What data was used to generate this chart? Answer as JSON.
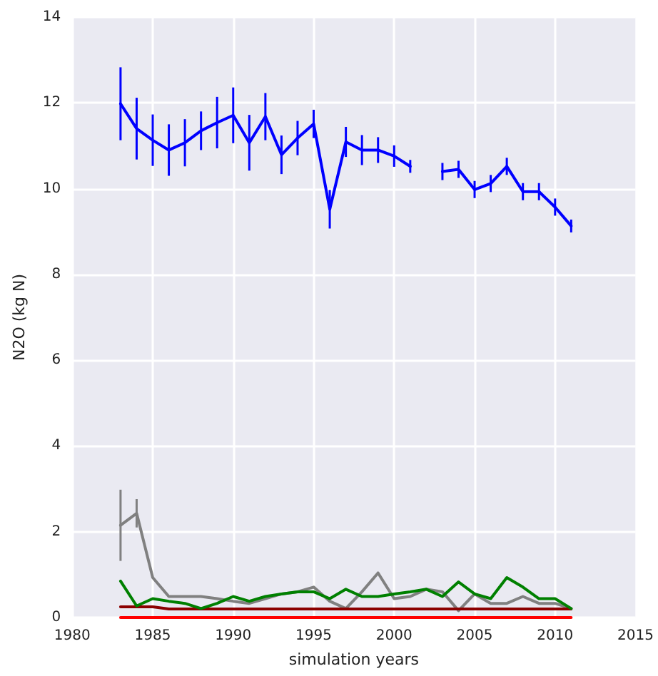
{
  "chart_data": {
    "type": "line",
    "xlabel": "simulation years",
    "ylabel": "N2O (kg N)",
    "x": [
      1983,
      1984,
      1985,
      1986,
      1987,
      1988,
      1989,
      1990,
      1991,
      1992,
      1993,
      1994,
      1995,
      1996,
      1997,
      1998,
      1999,
      2000,
      2001,
      2002,
      2003,
      2004,
      2005,
      2006,
      2007,
      2008,
      2009,
      2010,
      2011
    ],
    "series": [
      {
        "color": "#ff0000",
        "values": [
          0,
          0,
          0,
          0,
          0,
          0,
          0,
          0,
          0,
          0,
          0,
          0,
          0,
          0,
          0,
          0,
          0,
          0,
          0,
          0,
          0,
          0,
          0,
          0,
          0,
          0,
          0,
          0,
          0
        ]
      },
      {
        "color": "#0000ff",
        "values": [
          11.98,
          11.4,
          11.13,
          10.9,
          11.07,
          11.35,
          11.54,
          11.71,
          11.07,
          11.68,
          10.79,
          11.18,
          11.51,
          9.52,
          11.09,
          10.9,
          10.9,
          10.76,
          10.52,
          null,
          10.4,
          10.45,
          9.98,
          10.12,
          10.52,
          9.93,
          9.93,
          9.57,
          9.13
        ],
        "errors": [
          0.85,
          0.72,
          0.6,
          0.6,
          0.55,
          0.45,
          0.6,
          0.65,
          0.65,
          0.55,
          0.45,
          0.4,
          0.33,
          0.45,
          0.35,
          0.35,
          0.3,
          0.25,
          0.15,
          null,
          0.2,
          0.2,
          0.2,
          0.2,
          0.2,
          0.2,
          0.2,
          0.2,
          0.15
        ]
      },
      {
        "color": "#808080",
        "values": [
          2.15,
          2.43,
          0.93,
          0.49,
          0.49,
          0.49,
          0.44,
          0.38,
          0.33,
          0.44,
          0.55,
          0.6,
          0.71,
          0.38,
          0.21,
          0.6,
          1.04,
          0.44,
          0.49,
          0.66,
          0.6,
          0.16,
          0.55,
          0.33,
          0.33,
          0.49,
          0.33,
          0.33,
          0.21
        ],
        "errors": [
          0.83,
          0.33,
          null,
          null,
          null,
          null,
          null,
          null,
          null,
          null,
          null,
          null,
          null,
          null,
          null,
          null,
          null,
          null,
          null,
          null,
          null,
          null,
          null,
          null,
          null,
          null,
          null,
          null,
          null
        ]
      },
      {
        "color": "#8b0000",
        "values": [
          0.25,
          0.25,
          0.25,
          0.2,
          0.2,
          0.2,
          0.2,
          0.2,
          0.2,
          0.2,
          0.2,
          0.2,
          0.2,
          0.2,
          0.2,
          0.2,
          0.2,
          0.2,
          0.2,
          0.2,
          0.2,
          0.2,
          0.2,
          0.2,
          0.2,
          0.2,
          0.2,
          0.2,
          0.2
        ]
      },
      {
        "color": "#008000",
        "values": [
          0.85,
          0.27,
          0.44,
          0.38,
          0.33,
          0.21,
          0.33,
          0.49,
          0.38,
          0.49,
          0.55,
          0.6,
          0.6,
          0.44,
          0.66,
          0.49,
          0.49,
          0.55,
          0.6,
          0.66,
          0.49,
          0.83,
          0.55,
          0.44,
          0.93,
          0.71,
          0.44,
          0.44,
          0.21
        ]
      }
    ],
    "xlim": [
      1980,
      2015
    ],
    "xticks": [
      1980,
      1985,
      1990,
      1995,
      2000,
      2005,
      2010,
      2015
    ],
    "ylim": [
      0,
      14
    ],
    "yticks": [
      0,
      2,
      4,
      6,
      8,
      10,
      12,
      14
    ],
    "grid": true,
    "marker": "none",
    "line_style": "solid"
  }
}
